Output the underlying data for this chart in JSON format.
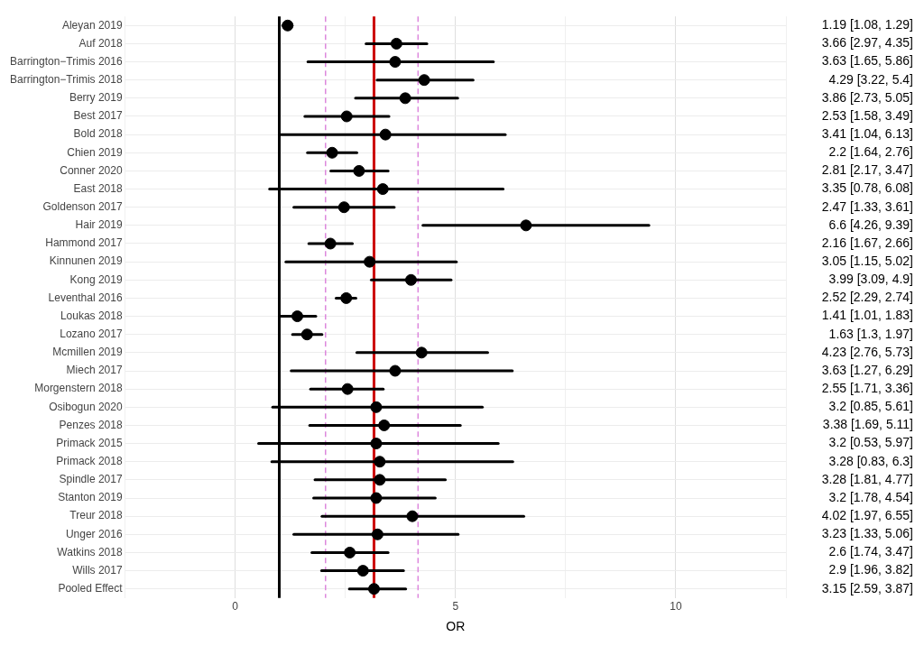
{
  "chart_data": {
    "type": "scatter",
    "orientation": "horizontal",
    "xlabel": "OR",
    "color": "#000000",
    "marker": "circle",
    "grid": true,
    "categories": [
      "Aleyan 2019",
      "Auf 2018",
      "Barrington−Trimis 2016",
      "Barrington−Trimis 2018",
      "Berry 2019",
      "Best 2017",
      "Bold 2018",
      "Chien 2019",
      "Conner 2020",
      "East 2018",
      "Goldenson 2017",
      "Hair 2019",
      "Hammond 2017",
      "Kinnunen 2019",
      "Kong 2019",
      "Leventhal 2016",
      "Loukas 2018",
      "Lozano 2017",
      "Mcmillen 2019",
      "Miech 2017",
      "Morgenstern 2018",
      "Osibogun 2020",
      "Penzes 2018",
      "Primack 2015",
      "Primack 2018",
      "Spindle 2017",
      "Stanton 2019",
      "Treur 2018",
      "Unger 2016",
      "Watkins 2018",
      "Wills 2017",
      "Pooled Effect"
    ],
    "values": [
      1.19,
      3.66,
      3.63,
      4.29,
      3.86,
      2.53,
      3.41,
      2.2,
      2.81,
      3.35,
      2.47,
      6.6,
      2.16,
      3.05,
      3.99,
      2.52,
      1.41,
      1.63,
      4.23,
      3.63,
      2.55,
      3.2,
      3.38,
      3.2,
      3.28,
      3.28,
      3.2,
      4.02,
      3.23,
      2.6,
      2.9,
      3.15
    ],
    "errors": [
      [
        1.08,
        1.29
      ],
      [
        2.97,
        4.35
      ],
      [
        1.65,
        5.86
      ],
      [
        3.22,
        5.4
      ],
      [
        2.73,
        5.05
      ],
      [
        1.58,
        3.49
      ],
      [
        1.04,
        6.13
      ],
      [
        1.64,
        2.76
      ],
      [
        2.17,
        3.47
      ],
      [
        0.78,
        6.08
      ],
      [
        1.33,
        3.61
      ],
      [
        4.26,
        9.39
      ],
      [
        1.67,
        2.66
      ],
      [
        1.15,
        5.02
      ],
      [
        3.09,
        4.9
      ],
      [
        2.29,
        2.74
      ],
      [
        1.01,
        1.83
      ],
      [
        1.3,
        1.97
      ],
      [
        2.76,
        5.73
      ],
      [
        1.27,
        6.29
      ],
      [
        1.71,
        3.36
      ],
      [
        0.85,
        5.61
      ],
      [
        1.69,
        5.11
      ],
      [
        0.53,
        5.97
      ],
      [
        0.83,
        6.3
      ],
      [
        1.81,
        4.77
      ],
      [
        1.78,
        4.54
      ],
      [
        1.97,
        6.55
      ],
      [
        1.33,
        5.06
      ],
      [
        1.74,
        3.47
      ],
      [
        1.96,
        3.82
      ],
      [
        2.59,
        3.87
      ]
    ],
    "value_labels": [
      "1.19 [1.08, 1.29]",
      "3.66 [2.97, 4.35]",
      "3.63 [1.65, 5.86]",
      "4.29 [3.22, 5.4]",
      "3.86 [2.73, 5.05]",
      "2.53 [1.58, 3.49]",
      "3.41 [1.04, 6.13]",
      "2.2 [1.64, 2.76]",
      "2.81 [2.17, 3.47]",
      "3.35 [0.78, 6.08]",
      "2.47 [1.33, 3.61]",
      "6.6 [4.26, 9.39]",
      "2.16 [1.67, 2.66]",
      "3.05 [1.15, 5.02]",
      "3.99 [3.09, 4.9]",
      "2.52 [2.29, 2.74]",
      "1.41 [1.01, 1.83]",
      "1.63 [1.3, 1.97]",
      "4.23 [2.76, 5.73]",
      "3.63 [1.27, 6.29]",
      "2.55 [1.71, 3.36]",
      "3.2 [0.85, 5.61]",
      "3.38 [1.69, 5.11]",
      "3.2 [0.53, 5.97]",
      "3.28 [0.83, 6.3]",
      "3.28 [1.81, 4.77]",
      "3.2 [1.78, 4.54]",
      "4.02 [1.97, 6.55]",
      "3.23 [1.33, 5.06]",
      "2.6 [1.74, 3.47]",
      "2.9 [1.96, 3.82]",
      "3.15 [2.59, 3.87]"
    ],
    "xlim": [
      -2.5,
      12.5
    ],
    "xticks": [
      {
        "value": -2.5,
        "label": null
      },
      0,
      {
        "value": 2.5,
        "label": null
      },
      5,
      {
        "value": 7.5,
        "label": null
      },
      10,
      {
        "value": 12.5,
        "label": null
      }
    ],
    "ref_lines": [
      {
        "axis": "x",
        "value": 1,
        "color": "#000000",
        "line_style": "solid"
      },
      {
        "axis": "x",
        "value": 3.15,
        "color": "#cc0000",
        "line_style": "solid"
      },
      {
        "axis": "x",
        "value": 2.05,
        "color": "#dd88dd",
        "line_style": "dashed"
      },
      {
        "axis": "x",
        "value": 4.15,
        "color": "#dd88dd",
        "line_style": "dashed"
      }
    ]
  }
}
